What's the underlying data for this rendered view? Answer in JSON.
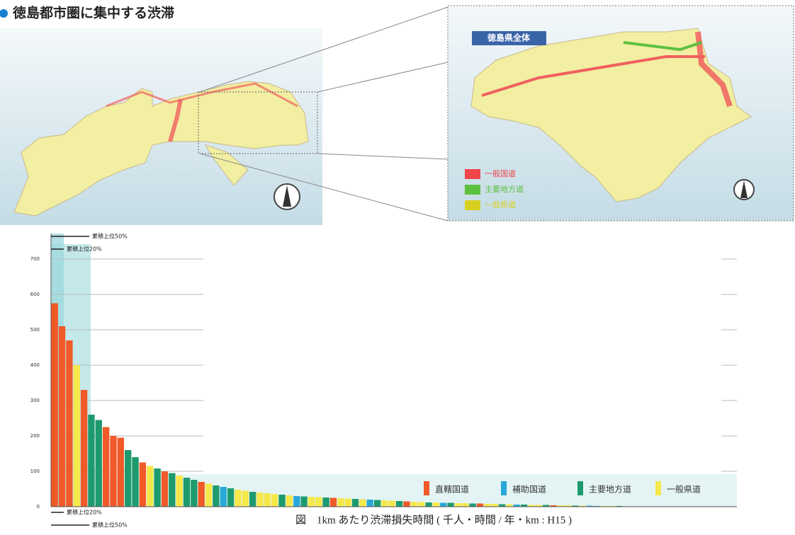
{
  "title": "徳島都市圏に集中する渋滞",
  "map": {
    "inset_label": "徳島県全体",
    "legend": [
      {
        "name": "一般国道",
        "color": "#f0454a"
      },
      {
        "name": "主要地方道",
        "color": "#5cc040"
      },
      {
        "name": "一般県道",
        "color": "#d8d020"
      }
    ]
  },
  "chart_data": {
    "type": "bar",
    "caption": "図　1km あたり渋滞損失時間 ( 千人・時間 / 年・km : H15 )",
    "annotations": [
      "累積上位50%",
      "累積上位20%"
    ],
    "ylim": [
      0,
      700
    ],
    "yticks": [
      0,
      100,
      200,
      300,
      400,
      500,
      600,
      700
    ],
    "grid": true,
    "legend": [
      {
        "name": "直轄国道",
        "color": "#f05a28"
      },
      {
        "name": "補助国道",
        "color": "#29a8d8"
      },
      {
        "name": "主要地方道",
        "color": "#1e9b6e"
      },
      {
        "name": "一般県道",
        "color": "#f5e84a"
      }
    ],
    "values": [
      575,
      510,
      470,
      400,
      330,
      260,
      245,
      225,
      200,
      195,
      160,
      140,
      125,
      115,
      108,
      100,
      95,
      88,
      82,
      76,
      70,
      65,
      60,
      56,
      52,
      48,
      45,
      42,
      40,
      38,
      36,
      34,
      32,
      30,
      29,
      28,
      27,
      26,
      25,
      24,
      23,
      22,
      21,
      20,
      19,
      18,
      17,
      16,
      15,
      14,
      13,
      12,
      12,
      11,
      11,
      10,
      10,
      9,
      9,
      8,
      8,
      7,
      7,
      6,
      6,
      5,
      5,
      5,
      4,
      4,
      4,
      3,
      3,
      3,
      2,
      2,
      2,
      2,
      1,
      1
    ],
    "colors": [
      "#f05a28",
      "#f05a28",
      "#f05a28",
      "#f5e84a",
      "#f05a28",
      "#1e9b6e",
      "#1e9b6e",
      "#f05a28",
      "#f05a28",
      "#f05a28",
      "#1e9b6e",
      "#1e9b6e",
      "#f05a28",
      "#f5e84a",
      "#1e9b6e",
      "#f05a28",
      "#1e9b6e",
      "#f5e84a",
      "#1e9b6e",
      "#1e9b6e",
      "#f05a28",
      "#f5e84a",
      "#1e9b6e",
      "#29a8d8",
      "#1e9b6e",
      "#f5e84a",
      "#f5e84a",
      "#1e9b6e",
      "#f5e84a",
      "#f5e84a",
      "#f5e84a",
      "#1e9b6e",
      "#f5e84a",
      "#29a8d8",
      "#1e9b6e",
      "#f5e84a",
      "#f5e84a",
      "#1e9b6e",
      "#f05a28",
      "#f5e84a",
      "#f5e84a",
      "#1e9b6e",
      "#f5e84a",
      "#29a8d8",
      "#1e9b6e",
      "#f5e84a",
      "#f5e84a",
      "#1e9b6e",
      "#f05a28",
      "#f5e84a",
      "#f5e84a",
      "#1e9b6e",
      "#f5e84a",
      "#29a8d8",
      "#1e9b6e",
      "#f5e84a",
      "#f5e84a",
      "#1e9b6e",
      "#f05a28",
      "#f5e84a",
      "#f5e84a",
      "#1e9b6e",
      "#f5e84a",
      "#29a8d8",
      "#1e9b6e",
      "#f5e84a",
      "#f5e84a",
      "#1e9b6e",
      "#f05a28",
      "#f5e84a",
      "#f5e84a",
      "#1e9b6e",
      "#f5e84a",
      "#29a8d8",
      "#1e9b6e",
      "#f5e84a",
      "#f5e84a",
      "#1e9b6e",
      "#f05a28",
      "#f5e84a"
    ]
  }
}
